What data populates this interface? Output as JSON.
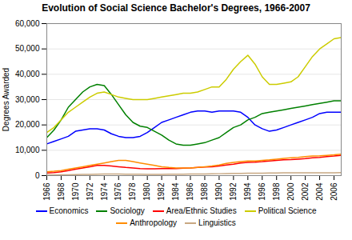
{
  "chart_data": {
    "type": "line",
    "title": "Evolution of Social Science Bachelor's Degrees, 1966-2007",
    "ylabel": "Degrees Awarded",
    "x": [
      1966,
      1967,
      1968,
      1969,
      1970,
      1971,
      1972,
      1973,
      1974,
      1975,
      1976,
      1977,
      1978,
      1979,
      1980,
      1981,
      1982,
      1983,
      1984,
      1985,
      1986,
      1987,
      1988,
      1989,
      1990,
      1991,
      1992,
      1993,
      1994,
      1995,
      1996,
      1997,
      1998,
      1999,
      2000,
      2001,
      2002,
      2003,
      2004,
      2005,
      2006,
      2007
    ],
    "series": [
      {
        "name": "Economics",
        "color": "#0000FF",
        "values": [
          12500,
          13500,
          14500,
          15500,
          17500,
          18000,
          18500,
          18500,
          18000,
          16500,
          15500,
          15000,
          15000,
          15500,
          17000,
          19000,
          21000,
          22000,
          23000,
          24000,
          25000,
          25500,
          25500,
          25000,
          25500,
          25500,
          25500,
          25000,
          23000,
          20000,
          18500,
          17500,
          18000,
          19000,
          20000,
          21000,
          22000,
          23000,
          24500,
          25000,
          25000,
          25000
        ]
      },
      {
        "name": "Sociology",
        "color": "#008000",
        "values": [
          15000,
          18000,
          22000,
          27000,
          30000,
          33000,
          35000,
          36000,
          35500,
          32000,
          28000,
          24000,
          21000,
          19500,
          19000,
          17500,
          16000,
          14000,
          12500,
          12000,
          12000,
          12500,
          13000,
          14000,
          15000,
          17000,
          19000,
          20000,
          22000,
          23000,
          24500,
          25000,
          25500,
          26000,
          26500,
          27000,
          27500,
          28000,
          28500,
          29000,
          29500,
          29500
        ]
      },
      {
        "name": "Area/Ethnic Studies",
        "color": "#FF0000",
        "values": [
          1000,
          1200,
          1500,
          2000,
          2500,
          3000,
          3500,
          4000,
          4000,
          3800,
          3500,
          3200,
          3000,
          2800,
          2700,
          2700,
          2800,
          2800,
          2800,
          2900,
          3000,
          3200,
          3400,
          3500,
          3800,
          4200,
          4500,
          5000,
          5200,
          5300,
          5500,
          5800,
          6000,
          6200,
          6300,
          6500,
          6700,
          7000,
          7200,
          7500,
          7700,
          8000
        ]
      },
      {
        "name": "Political Science",
        "color": "#CCCC00",
        "values": [
          17000,
          19000,
          22000,
          25000,
          27000,
          29000,
          31000,
          32500,
          33000,
          32000,
          31000,
          30500,
          30000,
          30000,
          30000,
          30500,
          31000,
          31500,
          32000,
          32500,
          32500,
          33000,
          34000,
          35000,
          35000,
          38000,
          42000,
          45000,
          47500,
          44000,
          39000,
          36000,
          36000,
          36500,
          37000,
          39000,
          43000,
          47000,
          50000,
          52000,
          54000,
          54500
        ]
      },
      {
        "name": "Anthropology",
        "color": "#FF8C00",
        "values": [
          1500,
          1700,
          2000,
          2500,
          3000,
          3500,
          4000,
          4500,
          5000,
          5500,
          6000,
          6000,
          5500,
          5000,
          4500,
          4000,
          3500,
          3200,
          3000,
          3000,
          3000,
          3200,
          3500,
          3800,
          4200,
          4800,
          5200,
          5500,
          5800,
          5800,
          6000,
          6200,
          6500,
          6800,
          7000,
          7200,
          7500,
          7700,
          7800,
          8000,
          8200,
          8500
        ]
      },
      {
        "name": "Linguistics",
        "color": "#C8A882",
        "values": [
          200,
          250,
          300,
          350,
          400,
          450,
          500,
          550,
          600,
          600,
          600,
          580,
          550,
          520,
          500,
          500,
          500,
          520,
          550,
          580,
          600,
          620,
          650,
          700,
          750,
          800,
          850,
          900,
          950,
          950,
          980,
          1000,
          1050,
          1100,
          1100,
          1100,
          1100,
          1100,
          1100,
          1100,
          1100,
          1200
        ]
      }
    ],
    "xlim": [
      1966,
      2007
    ],
    "xticks": [
      1966,
      1968,
      1970,
      1972,
      1974,
      1976,
      1978,
      1980,
      1982,
      1984,
      1986,
      1988,
      1990,
      1992,
      1994,
      1996,
      1998,
      2000,
      2002,
      2004,
      2006
    ],
    "ylim": [
      0,
      60000
    ],
    "yticks": [
      0,
      {
        "value": 10000,
        "label": "10,000"
      },
      {
        "value": 20000,
        "label": "20,000"
      },
      {
        "value": 30000,
        "label": "30,000"
      },
      {
        "value": 40000,
        "label": "40,000"
      },
      {
        "value": 50000,
        "label": "50,000"
      },
      {
        "value": 60000,
        "label": "60,000"
      }
    ],
    "grid": "y",
    "legend": "bottom"
  }
}
